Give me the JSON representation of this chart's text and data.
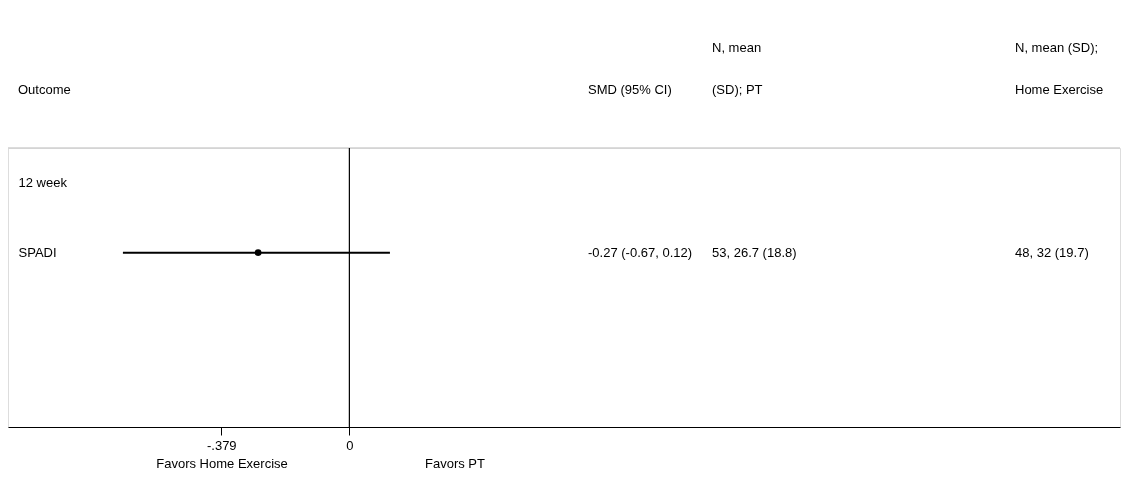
{
  "chart_data": {
    "type": "scatter",
    "orientation": "horizontal",
    "categories": [
      "12 week",
      "SPADI",
      null,
      null
    ],
    "values": [
      null,
      -0.27,
      null,
      null
    ],
    "errors": [
      null,
      [
        -0.67,
        0.12
      ],
      null,
      null
    ],
    "color": "#000000",
    "marker": "circle",
    "grid": false,
    "xlim": [
      -1.01,
      2.28
    ],
    "xticks": [
      {
        "value": -0.379,
        "label": "-.379"
      },
      0
    ],
    "ref_lines": [
      {
        "axis": "x",
        "value": 0,
        "color": "#000000"
      }
    ],
    "annotations": [
      "Outcome",
      "SMD (95% CI)",
      "N, mean\n(SD); PT",
      "N, mean (SD);\nHome Exercise",
      "-0.27 (-0.67, 0.12)",
      "53, 26.7 (18.8)",
      "48, 32 (19.7)",
      "Favors Home Exercise",
      "Favors PT"
    ]
  }
}
